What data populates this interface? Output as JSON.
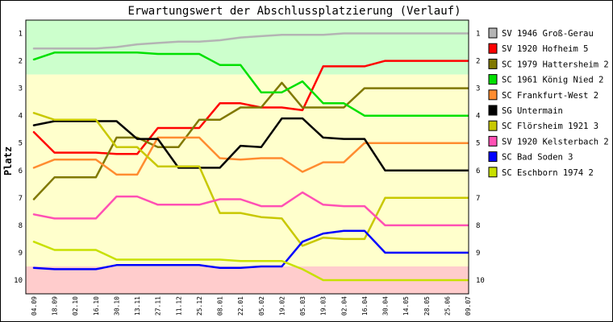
{
  "chart_data": {
    "type": "line",
    "title": "Erwartungswert der Abschlussplatzierung (Verlauf)",
    "ylabel": "Platz",
    "xlabel": "",
    "ylim": [
      1,
      10
    ],
    "y_inverted": true,
    "y_ticks": [
      1,
      2,
      3,
      4,
      5,
      6,
      7,
      8,
      9,
      10
    ],
    "grid": false,
    "legend_position": "right",
    "categories": [
      "04.09",
      "18.09",
      "02.10",
      "16.10",
      "30.10",
      "13.11",
      "27.11",
      "11.12",
      "25.12",
      "08.01",
      "22.01",
      "05.02",
      "19.02",
      "05.03",
      "19.03",
      "02.04",
      "16.04",
      "30.04",
      "14.05",
      "28.05",
      "25.06",
      "09.07"
    ],
    "bands": [
      {
        "name": "promotion",
        "from": 0.5,
        "to": 2.5,
        "color": "#ccffcc"
      },
      {
        "name": "midfield",
        "from": 2.5,
        "to": 9.5,
        "color": "#ffffcc"
      },
      {
        "name": "relegation",
        "from": 9.5,
        "to": 10.5,
        "color": "#ffcccc"
      }
    ],
    "series": [
      {
        "name": "SV 1946 Groß-Gerau",
        "color": "#b4b4b4",
        "values": [
          1.55,
          1.55,
          1.55,
          1.55,
          1.5,
          1.4,
          1.35,
          1.3,
          1.3,
          1.25,
          1.15,
          1.1,
          1.05,
          1.05,
          1.05,
          1.0,
          1.0,
          1.0,
          1.0,
          1.0,
          1.0,
          1.0
        ]
      },
      {
        "name": "SV 1920 Hofheim 5",
        "color": "#ff0000",
        "values": [
          4.6,
          5.35,
          5.35,
          5.35,
          5.4,
          5.4,
          4.45,
          4.45,
          4.45,
          3.55,
          3.55,
          3.7,
          3.7,
          3.8,
          2.2,
          2.2,
          2.2,
          2.0,
          2.0,
          2.0,
          2.0,
          2.0
        ]
      },
      {
        "name": "SC 1979 Hattersheim 2",
        "color": "#807800",
        "values": [
          7.05,
          6.25,
          6.25,
          6.25,
          4.8,
          4.8,
          5.15,
          5.15,
          4.15,
          4.15,
          3.7,
          3.7,
          2.8,
          3.7,
          3.7,
          3.7,
          3.0,
          3.0,
          3.0,
          3.0,
          3.0,
          3.0
        ]
      },
      {
        "name": "SC 1961 König Nied 2",
        "color": "#00e000",
        "values": [
          1.95,
          1.7,
          1.7,
          1.7,
          1.7,
          1.7,
          1.75,
          1.75,
          1.75,
          2.15,
          2.15,
          3.15,
          3.15,
          2.75,
          3.55,
          3.55,
          4.0,
          4.0,
          4.0,
          4.0,
          4.0,
          4.0
        ]
      },
      {
        "name": "SC Frankfurt-West 2",
        "color": "#ff8c30",
        "values": [
          5.9,
          5.6,
          5.6,
          5.6,
          6.15,
          6.15,
          4.8,
          4.8,
          4.8,
          5.55,
          5.6,
          5.55,
          5.55,
          6.05,
          5.7,
          5.7,
          5.0,
          5.0,
          5.0,
          5.0,
          5.0,
          5.0
        ]
      },
      {
        "name": "SG Untermain",
        "color": "#000000",
        "values": [
          4.35,
          4.2,
          4.2,
          4.2,
          4.2,
          4.85,
          4.85,
          5.9,
          5.9,
          5.9,
          5.1,
          5.15,
          4.1,
          4.1,
          4.8,
          4.85,
          4.85,
          6.0,
          6.0,
          6.0,
          6.0,
          6.0
        ]
      },
      {
        "name": "SC Flörsheim 1921 3",
        "color": "#c8c800",
        "values": [
          3.9,
          4.15,
          4.15,
          4.15,
          5.15,
          5.15,
          5.85,
          5.85,
          5.85,
          7.55,
          7.55,
          7.7,
          7.75,
          8.75,
          8.45,
          8.5,
          8.5,
          7.0,
          7.0,
          7.0,
          7.0,
          7.0
        ]
      },
      {
        "name": "SV 1920 Kelsterbach 2",
        "color": "#ff50b4",
        "values": [
          7.6,
          7.75,
          7.75,
          7.75,
          6.95,
          6.95,
          7.25,
          7.25,
          7.25,
          7.05,
          7.05,
          7.3,
          7.3,
          6.8,
          7.25,
          7.3,
          7.3,
          8.0,
          8.0,
          8.0,
          8.0,
          8.0
        ]
      },
      {
        "name": "SC Bad Soden 3",
        "color": "#0000ff",
        "values": [
          9.55,
          9.6,
          9.6,
          9.6,
          9.45,
          9.45,
          9.45,
          9.45,
          9.45,
          9.55,
          9.55,
          9.5,
          9.5,
          8.6,
          8.3,
          8.2,
          8.2,
          9.0,
          9.0,
          9.0,
          9.0,
          9.0
        ]
      },
      {
        "name": "SC Eschborn 1974 2",
        "color": "#c8e000",
        "values": [
          8.6,
          8.9,
          8.9,
          8.9,
          9.25,
          9.25,
          9.25,
          9.25,
          9.25,
          9.25,
          9.3,
          9.3,
          9.3,
          9.6,
          10.0,
          10.0,
          10.0,
          10.0,
          10.0,
          10.0,
          10.0,
          10.0
        ]
      }
    ]
  }
}
